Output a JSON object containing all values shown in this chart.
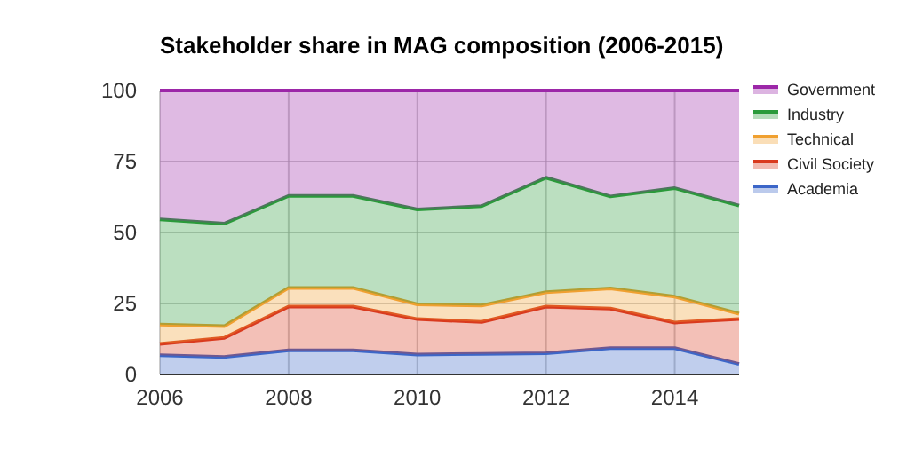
{
  "chart_data": {
    "type": "area",
    "title": "Stakeholder share in MAG composition (2006-2015)",
    "stacked": true,
    "x": [
      2006,
      2007,
      2008,
      2009,
      2010,
      2011,
      2012,
      2013,
      2014,
      2015
    ],
    "series": [
      {
        "name": "Academia",
        "color": "#3c66c8",
        "values": [
          6.8,
          6.2,
          8.5,
          8.5,
          7,
          7.3,
          7.5,
          9.3,
          9.3,
          3.7
        ]
      },
      {
        "name": "Civil Society",
        "color": "#d93a1e",
        "values": [
          4,
          6.7,
          15.4,
          15.4,
          12.5,
          11.2,
          16.4,
          13.9,
          9,
          15.8
        ]
      },
      {
        "name": "Technical",
        "color": "#f0a030",
        "values": [
          6.8,
          4.1,
          6.6,
          6.6,
          5.2,
          5.8,
          5.1,
          7.1,
          9.1,
          1.9
        ]
      },
      {
        "name": "Industry",
        "color": "#2a9a3a",
        "values": [
          37,
          36.1,
          32.4,
          32.4,
          33.4,
          35,
          40.3,
          32.4,
          38.2,
          38.1
        ]
      },
      {
        "name": "Government",
        "color": "#9c27a8",
        "values": [
          45.4,
          46.9,
          37.1,
          37.1,
          41.9,
          40.7,
          30.7,
          37.3,
          34.4,
          40.5
        ]
      }
    ],
    "xlim": [
      2006,
      2015
    ],
    "xticks": [
      2006,
      2008,
      2010,
      2012,
      2014
    ],
    "ylim": [
      0,
      100
    ],
    "yticks": [
      0,
      25,
      50,
      75,
      100
    ],
    "grid": true,
    "legend": "right"
  }
}
